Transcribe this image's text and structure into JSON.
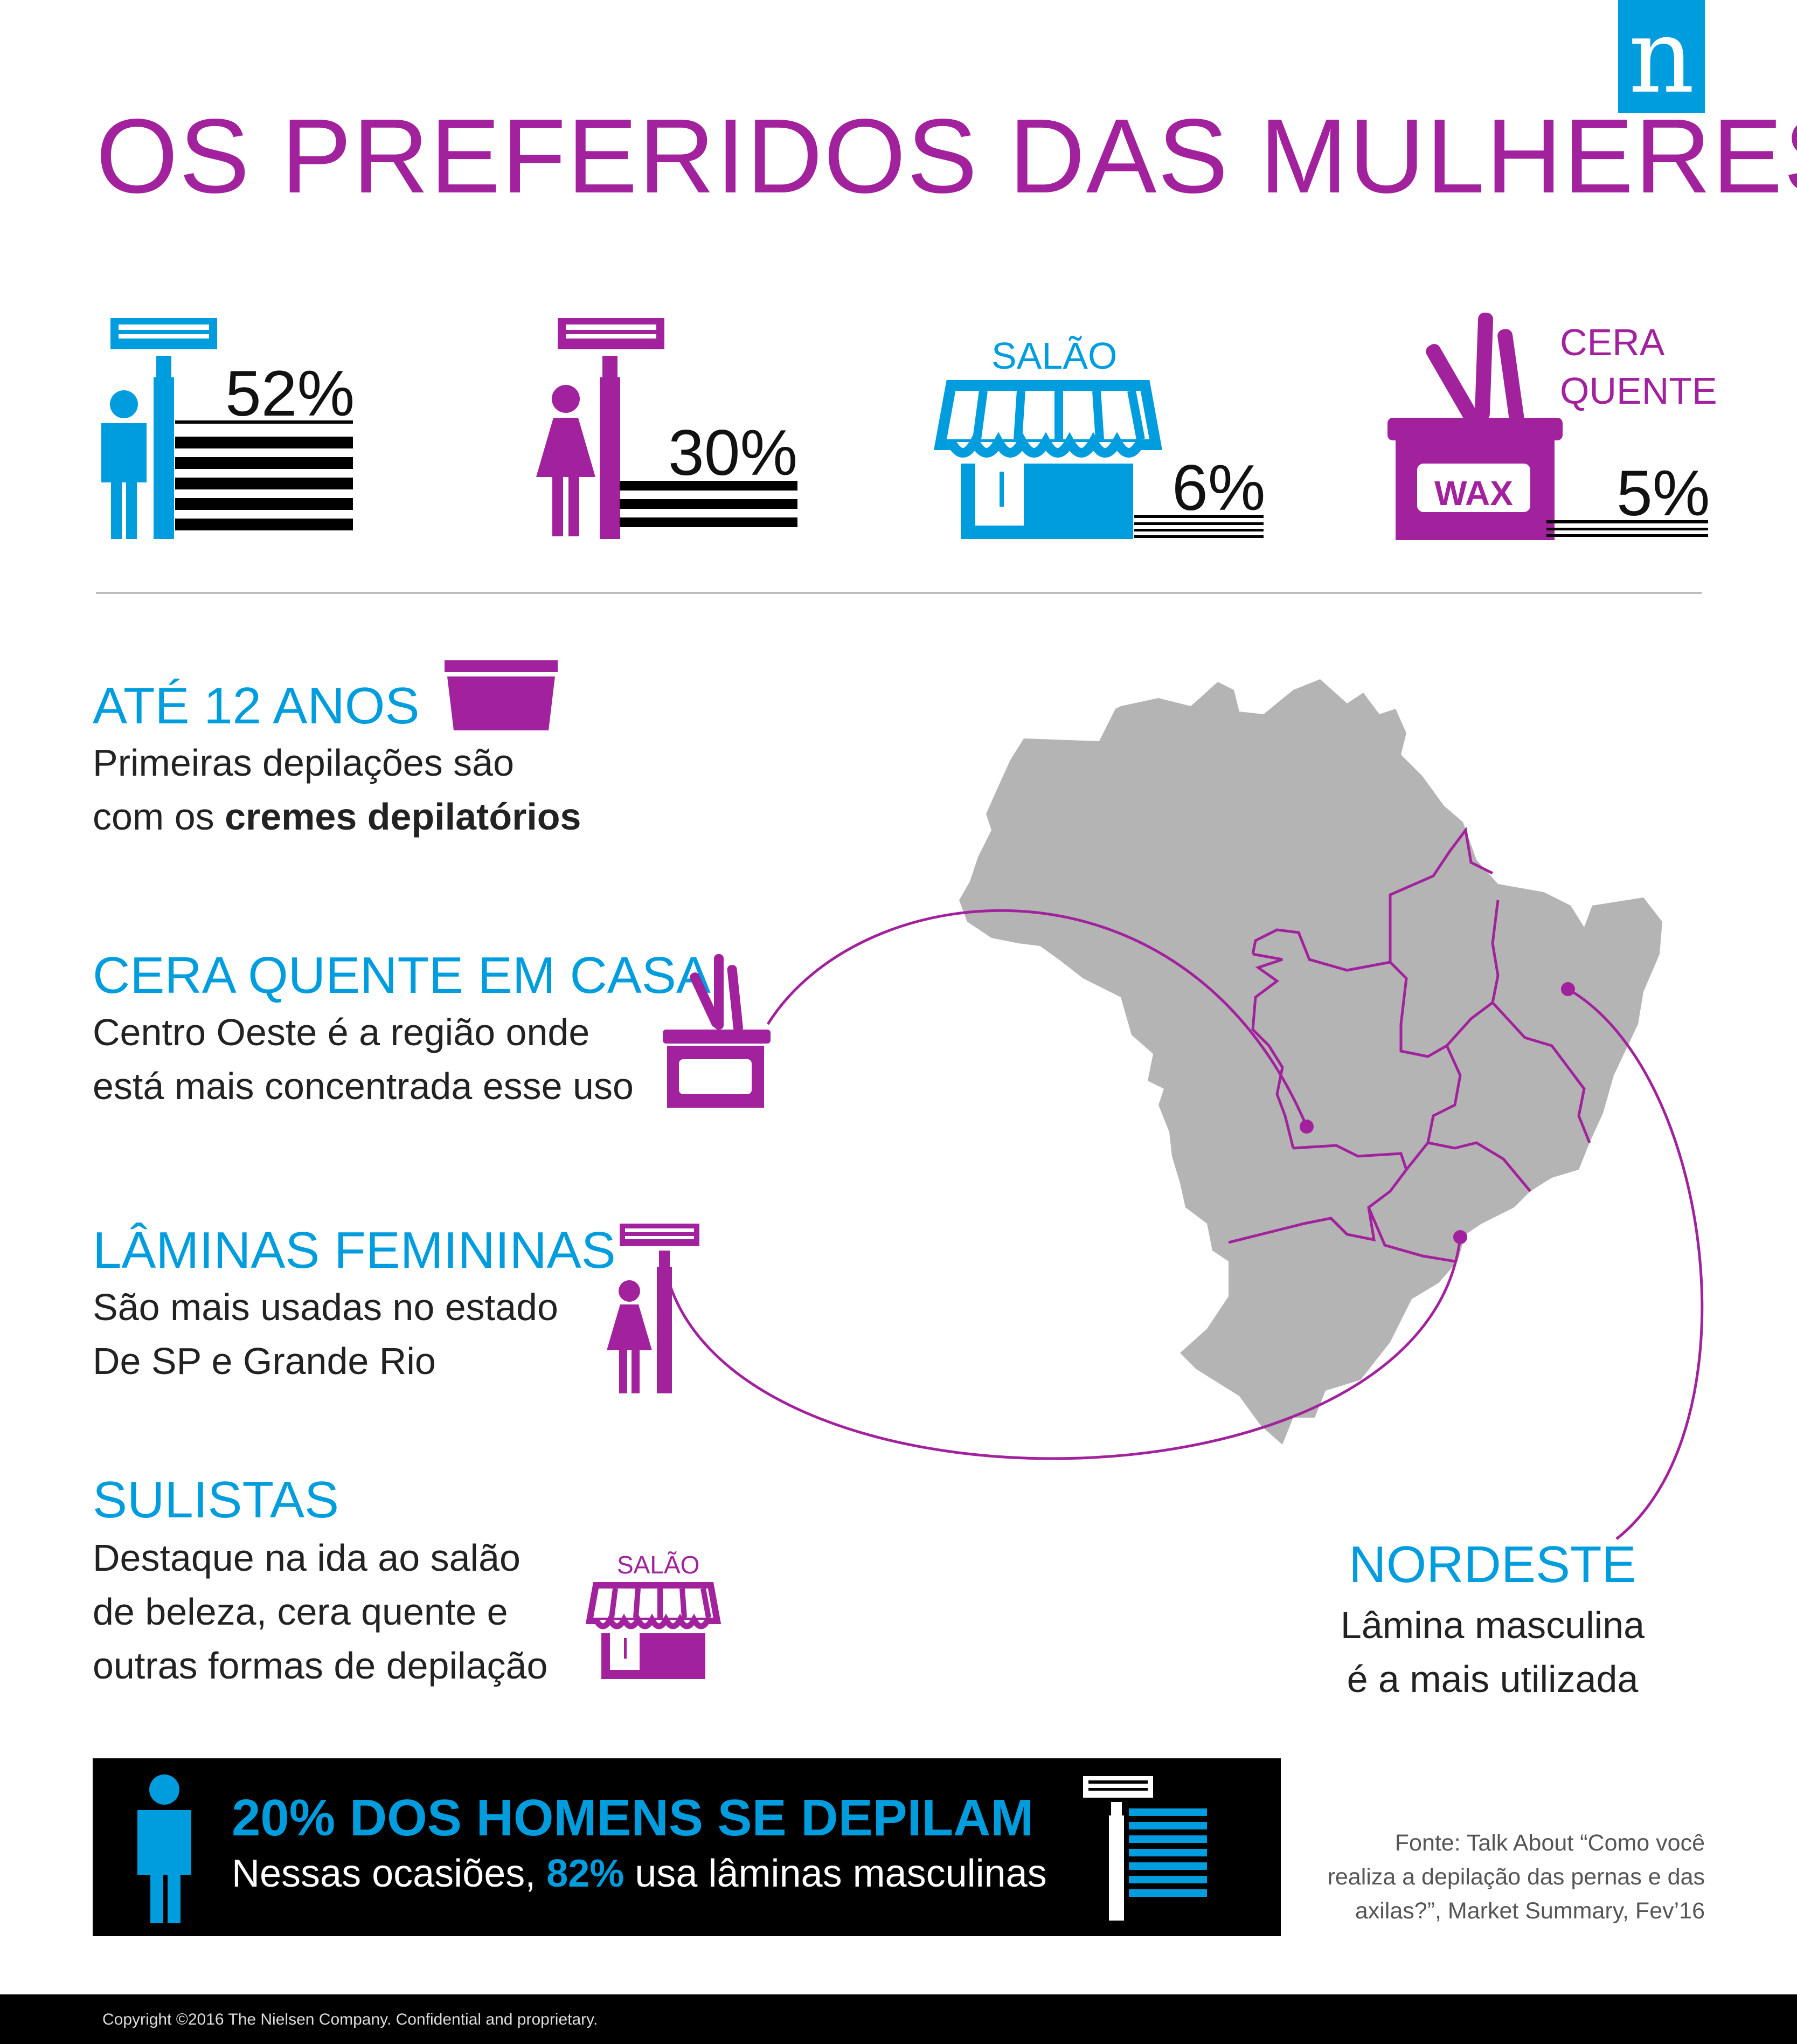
{
  "logo": {
    "letter": "n"
  },
  "title": "OS PREFERIDOS DAS MULHERES",
  "stats": [
    {
      "value": "52%"
    },
    {
      "value": "30%"
    },
    {
      "label": "SALÃO",
      "value": "6%"
    },
    {
      "label_line1": "CERA",
      "label_line2": "QUENTE",
      "box_text": "WAX",
      "value": "5%"
    }
  ],
  "sections": [
    {
      "heading": "ATÉ 12 ANOS",
      "line1": "Primeiras depilações são",
      "line2_prefix": "com os ",
      "line2_bold": "cremes depilatórios"
    },
    {
      "heading": "CERA QUENTE EM CASA",
      "line1": "Centro Oeste é a região onde",
      "line2": "está mais concentrada esse uso"
    },
    {
      "heading": "LÂMINAS FEMININAS",
      "line1": "São mais usadas no estado",
      "line2": "De SP e Grande Rio"
    },
    {
      "heading": "SULISTAS",
      "line1": "Destaque na ida ao salão",
      "line2": "de beleza, cera quente e",
      "line3": "outras formas de depilação",
      "icon_label": "SALÃO"
    }
  ],
  "nordeste": {
    "heading": "NORDESTE",
    "line1": "Lâmina masculina",
    "line2": "é a mais utilizada"
  },
  "banner": {
    "heading": "20% DOS HOMENS SE DEPILAM",
    "body_prefix": "Nessas ocasiões, ",
    "body_bold": "82%",
    "body_suffix": " usa lâminas masculinas"
  },
  "source": {
    "line1": "Fonte: Talk About “Como você",
    "line2": "realiza a depilação das pernas e das",
    "line3": "axilas?”, Market Summary, Fev’16"
  },
  "copyright": "Copyright ©2016 The Nielsen Company. Confidential and proprietary.",
  "colors": {
    "blue": "#009dde",
    "purple": "#a2229d",
    "map_gray": "#b4b4b4",
    "black": "#000000"
  }
}
